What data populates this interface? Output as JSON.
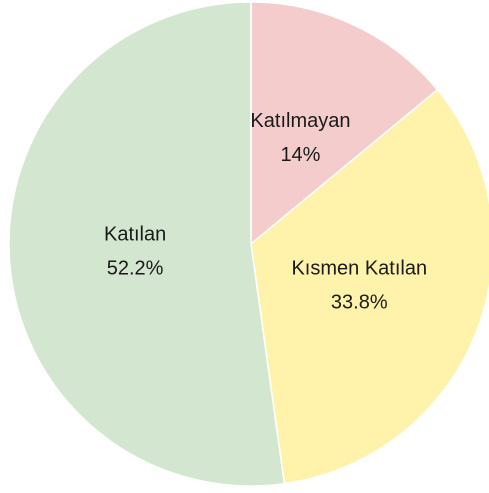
{
  "chart_data": {
    "type": "pie",
    "categories": [
      "Katılmayan",
      "Kısmen Katılan",
      "Katılan"
    ],
    "values": [
      14,
      33.8,
      52.2
    ],
    "value_labels": [
      "14%",
      "33.8%",
      "52.2%"
    ],
    "colors": [
      "#f4cccc",
      "#fff2aa",
      "#d3e6cf"
    ]
  }
}
